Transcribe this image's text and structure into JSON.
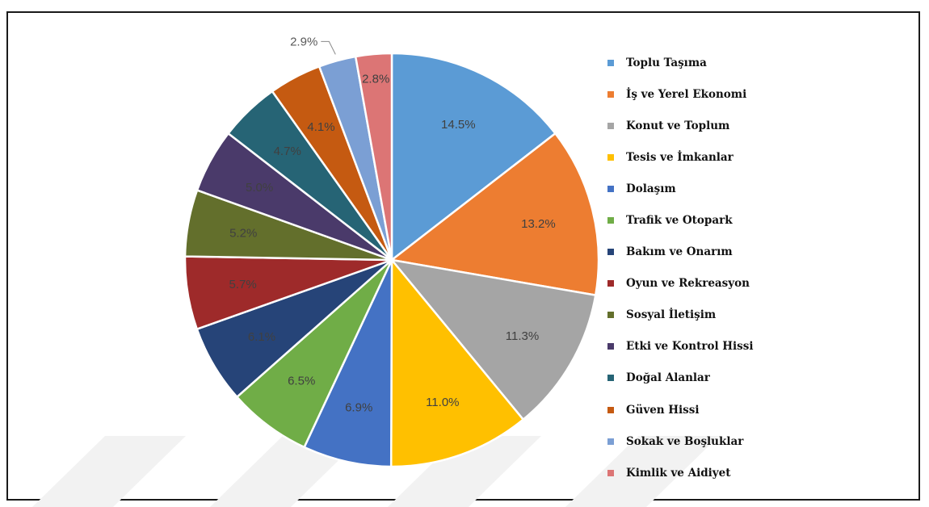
{
  "chart_data": {
    "type": "pie",
    "title": "",
    "slices": [
      {
        "name": "Toplu Taşıma",
        "value": 14.5,
        "label": "14.5%",
        "color": "#5b9bd5"
      },
      {
        "name": "İş ve Yerel Ekonomi",
        "value": 13.2,
        "label": "13.2%",
        "color": "#ed7d31"
      },
      {
        "name": "Konut ve Toplum",
        "value": 11.3,
        "label": "11.3%",
        "color": "#a5a5a5"
      },
      {
        "name": "Tesis ve İmkanlar",
        "value": 11.0,
        "label": "11.0%",
        "color": "#ffc000"
      },
      {
        "name": "Dolaşım",
        "value": 6.9,
        "label": "6.9%",
        "color": "#4472c4"
      },
      {
        "name": "Trafik ve Otopark",
        "value": 6.5,
        "label": "6.5%",
        "color": "#70ad47"
      },
      {
        "name": "Bakım ve Onarım",
        "value": 6.1,
        "label": "6.1%",
        "color": "#264478"
      },
      {
        "name": "Oyun ve Rekreasyon",
        "value": 5.7,
        "label": "5.7%",
        "color": "#9e2a2a"
      },
      {
        "name": "Sosyal İletişim",
        "value": 5.2,
        "label": "5.2%",
        "color": "#636f2c"
      },
      {
        "name": "Etki ve Kontrol Hissi",
        "value": 5.0,
        "label": "5.0%",
        "color": "#4a3a6a"
      },
      {
        "name": "Doğal Alanlar",
        "value": 4.7,
        "label": "4.7%",
        "color": "#266475"
      },
      {
        "name": "Güven Hissi",
        "value": 4.1,
        "label": "4.1%",
        "color": "#c55a11"
      },
      {
        "name": "Sokak ve Boşluklar",
        "value": 2.9,
        "label": "2.9%",
        "color": "#7b9fd4"
      },
      {
        "name": "Kimlik ve Aidiyet",
        "value": 2.8,
        "label": "2.8%",
        "color": "#dc7575"
      }
    ],
    "legend_position": "right"
  }
}
